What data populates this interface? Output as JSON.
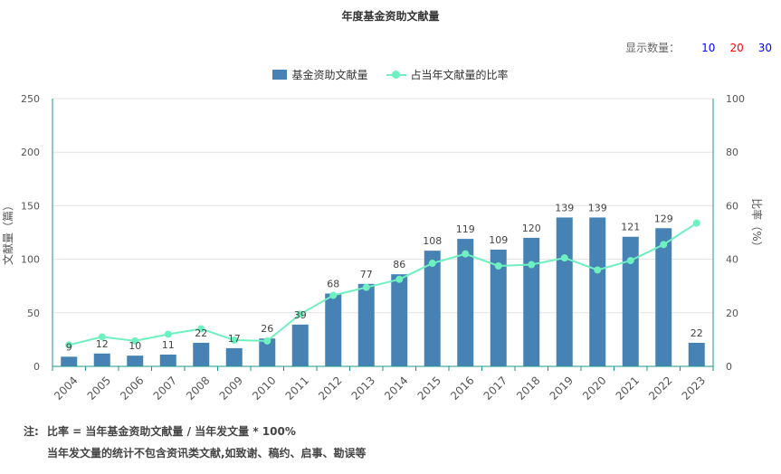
{
  "colors": {
    "bar": "#4682b4",
    "line": "#6ff0c0",
    "axis": "#1a9988",
    "grid": "#e3e3e3"
  },
  "header": {
    "title": "年度基金资助文献量"
  },
  "display_count": {
    "label": "显示数量：",
    "options": [
      {
        "label": "10",
        "color": "#0000ff"
      },
      {
        "label": "20",
        "color": "#ff0000"
      },
      {
        "label": "30",
        "color": "#0000ff"
      }
    ]
  },
  "legend": {
    "bar_label": "基金资助文献量",
    "line_label": "占当年文献量的比率"
  },
  "chart_data": {
    "type": "bar",
    "title": "年度基金资助文献量",
    "categories": [
      "2004",
      "2005",
      "2006",
      "2007",
      "2008",
      "2009",
      "2010",
      "2011",
      "2012",
      "2013",
      "2014",
      "2015",
      "2016",
      "2017",
      "2018",
      "2019",
      "2020",
      "2021",
      "2022",
      "2023"
    ],
    "series": [
      {
        "name": "基金资助文献量",
        "type": "bar",
        "axis": "left",
        "values": [
          9,
          12,
          10,
          11,
          22,
          17,
          26,
          39,
          68,
          77,
          86,
          108,
          119,
          109,
          120,
          139,
          139,
          121,
          129,
          22
        ]
      },
      {
        "name": "占当年文献量的比率",
        "type": "line",
        "axis": "right",
        "values": [
          8,
          11,
          9.5,
          12,
          14,
          9.8,
          9.5,
          19.5,
          26.5,
          29.5,
          32.5,
          38.5,
          42,
          37.5,
          38,
          40.5,
          36,
          39.5,
          45.5,
          53.5
        ]
      }
    ],
    "ylabel_left": "文献量（篇）",
    "ylabel_right": "比率（%）",
    "ylim_left": [
      0,
      250
    ],
    "ylim_right": [
      0,
      100
    ],
    "yticks_left": [
      "0",
      "50",
      "100",
      "150",
      "200",
      "250"
    ],
    "yticks_right": [
      "0",
      "20",
      "40",
      "60",
      "80",
      "100"
    ],
    "grid": true,
    "legend_position": "top-center"
  },
  "notes": {
    "label": "注:",
    "line1": "比率 = 当年基金资助文献量 / 当年发文量 * 100%",
    "line2": "当年发文量的统计不包含资讯类文献,如致谢、稿约、启事、勘误等"
  }
}
